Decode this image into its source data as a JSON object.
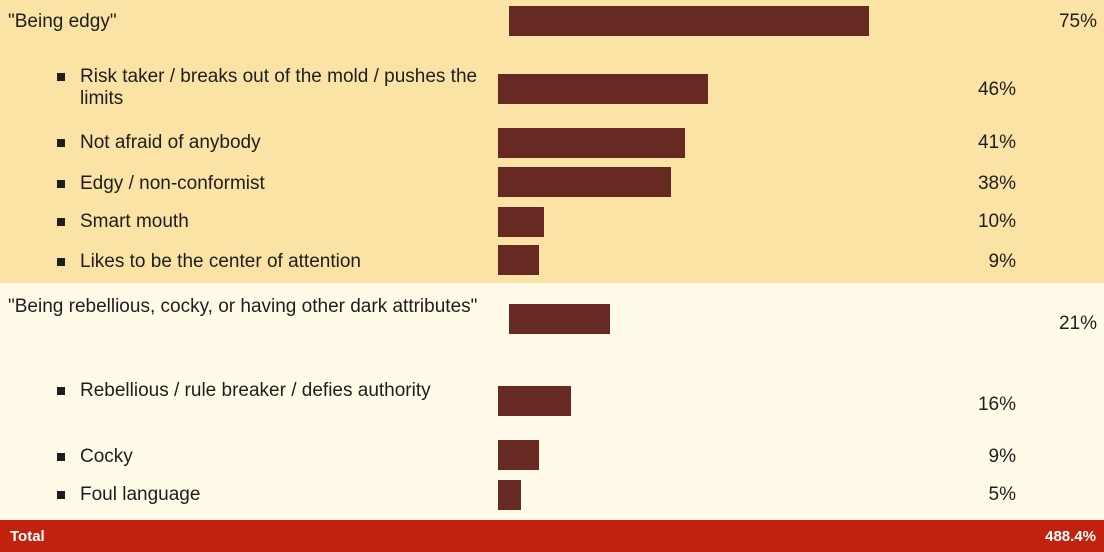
{
  "colors": {
    "group_1_background": "#fbe3a6",
    "group_2_background": "#fffbe8",
    "bar": "#662a22",
    "total_background": "#c0220e",
    "total_text": "#ffffff"
  },
  "chart_data": {
    "type": "bar",
    "orientation": "horizontal",
    "xlim": [
      0,
      100
    ],
    "groups": [
      {
        "label": "\"Being edgy\"",
        "value": 75,
        "value_label": "75%",
        "items": [
          {
            "label": "Risk taker / breaks out of the mold / pushes the limits",
            "value": 46,
            "value_label": "46%"
          },
          {
            "label": "Not afraid of anybody",
            "value": 41,
            "value_label": "41%"
          },
          {
            "label": "Edgy / non-conformist",
            "value": 38,
            "value_label": "38%"
          },
          {
            "label": "Smart mouth",
            "value": 10,
            "value_label": "10%"
          },
          {
            "label": "Likes to be the center of attention",
            "value": 9,
            "value_label": "9%"
          }
        ]
      },
      {
        "label": "\"Being rebellious, cocky, or having other dark attributes\"",
        "value": 21,
        "value_label": "21%",
        "items": [
          {
            "label": "Rebellious / rule breaker / defies authority",
            "value": 16,
            "value_label": "16%"
          },
          {
            "label": "Cocky",
            "value": 9,
            "value_label": "9%"
          },
          {
            "label": "Foul language",
            "value": 5,
            "value_label": "5%"
          }
        ]
      }
    ],
    "total": {
      "label": "Total",
      "value": 488.4,
      "value_label": "488.4%"
    }
  }
}
